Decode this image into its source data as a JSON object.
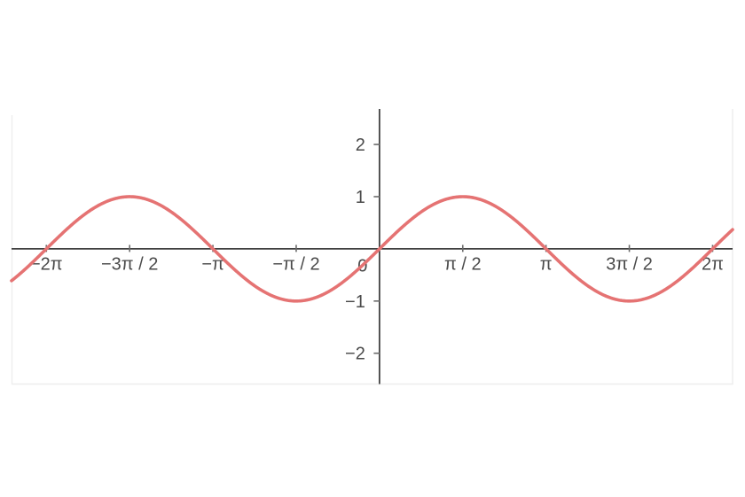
{
  "chart_data": {
    "type": "line",
    "title": "",
    "xlabel": "",
    "ylabel": "",
    "grid": false,
    "legend": false,
    "series": [
      {
        "name": "sin(x)",
        "function": "sin",
        "amplitude": 1,
        "period_radians": 6.2832,
        "phase": 0,
        "color": "#e57373",
        "stroke_width": 3.6
      }
    ],
    "xlim": [
      -6.94,
      6.66
    ],
    "ylim": [
      -2.59,
      2.68
    ],
    "x_ticks": [
      {
        "value": -6.2832,
        "label": "−2π"
      },
      {
        "value": -4.7124,
        "label": "−3π / 2"
      },
      {
        "value": -3.1416,
        "label": "−π"
      },
      {
        "value": -1.5708,
        "label": "−π / 2"
      },
      {
        "value": 1.5708,
        "label": "π / 2"
      },
      {
        "value": 3.1416,
        "label": "π"
      },
      {
        "value": 4.7124,
        "label": "3π / 2"
      },
      {
        "value": 6.2832,
        "label": "2π"
      }
    ],
    "y_ticks": [
      {
        "value": 2,
        "label": "2"
      },
      {
        "value": 1,
        "label": "1"
      },
      {
        "value": -1,
        "label": "−1"
      },
      {
        "value": -2,
        "label": "−2"
      }
    ],
    "origin_label": "0",
    "key_points": [
      {
        "x": -6.2832,
        "y": 0
      },
      {
        "x": -4.7124,
        "y": 1
      },
      {
        "x": -3.1416,
        "y": 0
      },
      {
        "x": -1.5708,
        "y": -1
      },
      {
        "x": 0,
        "y": 0
      },
      {
        "x": 1.5708,
        "y": 1
      },
      {
        "x": 3.1416,
        "y": 0
      },
      {
        "x": 4.7124,
        "y": -1
      },
      {
        "x": 6.2832,
        "y": 0
      }
    ],
    "colors": {
      "axis": "#424242",
      "tick": "#6b6b6b",
      "tick_label": "#4a4a4a",
      "curve": "#e57373",
      "plot_border": "#ededed",
      "background": "#ffffff"
    }
  }
}
